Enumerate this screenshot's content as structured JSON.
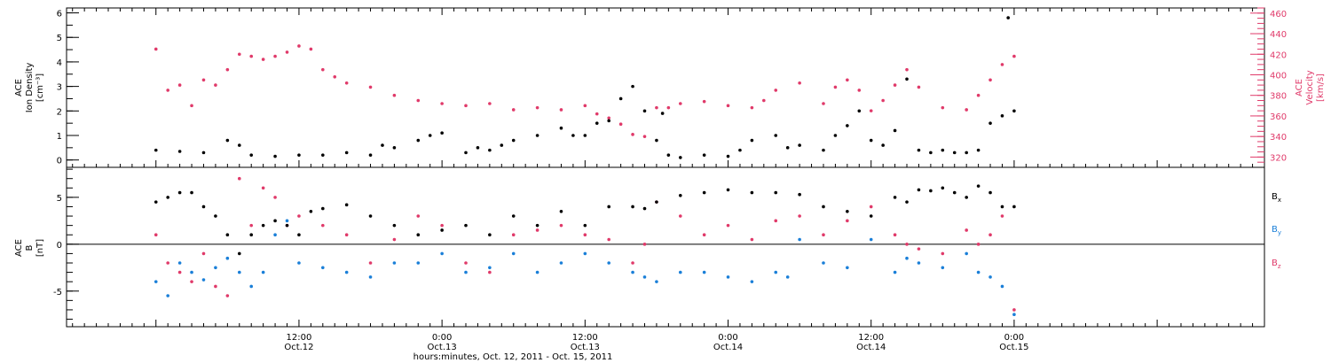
{
  "colors": {
    "black": "#000000",
    "pink": "#e03a6a",
    "blue": "#1a7fd8"
  },
  "xaxis": {
    "title": "hours:minutes, Oct. 12, 2011 - Oct. 15, 2011",
    "ticks": [
      {
        "hour": 12,
        "time": "12:00",
        "date": "Oct.12"
      },
      {
        "hour": 24,
        "time": "0:00",
        "date": "Oct.13"
      },
      {
        "hour": 36,
        "time": "12:00",
        "date": "Oct.13"
      },
      {
        "hour": 48,
        "time": "0:00",
        "date": "Oct.14"
      },
      {
        "hour": 60,
        "time": "12:00",
        "date": "Oct.14"
      },
      {
        "hour": 72,
        "time": "0:00",
        "date": "Oct.15"
      }
    ]
  },
  "chart_data": [
    {
      "type": "scatter",
      "panel": "top",
      "ylabel": [
        "ACE",
        "Ion Density",
        "[cm⁻³]"
      ],
      "ylim": [
        -0.3,
        6.2
      ],
      "yticks": [
        "0",
        "1",
        "2",
        "3",
        "4",
        "5",
        "6"
      ],
      "y2label": [
        "ACE",
        "Velocity",
        "[km/s]"
      ],
      "y2lim": [
        310,
        465
      ],
      "y2ticks": [
        "320",
        "340",
        "360",
        "380",
        "400",
        "420",
        "440",
        "460"
      ],
      "series": [
        {
          "key": "density",
          "color": "#000000",
          "axis": "left",
          "x": [
            0,
            2,
            4,
            6,
            7,
            8,
            10,
            12,
            14,
            16,
            18,
            19,
            20,
            22,
            23,
            24,
            26,
            27,
            28,
            29,
            30,
            32,
            34,
            35,
            36,
            37,
            38,
            39,
            40,
            41,
            42,
            42.5,
            43,
            44,
            46,
            48,
            49,
            50,
            52,
            53,
            54,
            56,
            57,
            58,
            59,
            60,
            61,
            62,
            63,
            64,
            65,
            66,
            67,
            68,
            69,
            70,
            71,
            71.5,
            72
          ],
          "y": [
            0.4,
            0.35,
            0.3,
            0.8,
            0.6,
            0.2,
            0.15,
            0.2,
            0.2,
            0.3,
            0.2,
            0.6,
            0.5,
            0.8,
            1.0,
            1.1,
            0.3,
            0.5,
            0.4,
            0.6,
            0.8,
            1.0,
            1.3,
            1.0,
            1.0,
            1.5,
            1.6,
            2.5,
            3.0,
            2.0,
            0.8,
            1.9,
            0.2,
            0.1,
            0.2,
            0.15,
            0.4,
            0.8,
            1.0,
            0.5,
            0.6,
            0.4,
            1.0,
            1.4,
            2.0,
            0.8,
            0.6,
            1.2,
            3.3,
            0.4,
            0.3,
            0.4,
            0.3,
            0.3,
            0.4,
            1.5,
            1.8,
            5.8,
            2.0
          ]
        },
        {
          "key": "velocity",
          "color": "#e03a6a",
          "axis": "right",
          "x": [
            0,
            1,
            2,
            3,
            4,
            5,
            6,
            7,
            8,
            9,
            10,
            11,
            12,
            13,
            14,
            15,
            16,
            18,
            20,
            22,
            24,
            26,
            28,
            30,
            32,
            34,
            36,
            37,
            38,
            39,
            40,
            41,
            42,
            43,
            44,
            46,
            48,
            50,
            51,
            52,
            54,
            56,
            57,
            58,
            59,
            60,
            61,
            62,
            63,
            64,
            66,
            68,
            69,
            70,
            71,
            72
          ],
          "y": [
            425,
            385,
            390,
            370,
            395,
            390,
            405,
            420,
            418,
            415,
            418,
            422,
            428,
            425,
            405,
            398,
            392,
            388,
            380,
            375,
            372,
            370,
            372,
            366,
            368,
            366,
            370,
            362,
            358,
            352,
            342,
            340,
            368,
            368,
            372,
            374,
            370,
            368,
            375,
            385,
            392,
            372,
            388,
            395,
            385,
            365,
            375,
            390,
            405,
            388,
            368,
            366,
            380,
            395,
            410,
            418
          ]
        }
      ]
    },
    {
      "type": "scatter",
      "panel": "bottom",
      "ylabel": [
        "ACE",
        "B",
        "[nT]"
      ],
      "ylim": [
        -8.8,
        8.2
      ],
      "yticks": [
        "-5",
        "0",
        "5"
      ],
      "zero_line": true,
      "series": [
        {
          "key": "bx",
          "name": "Bx",
          "color": "#000000",
          "x": [
            0,
            1,
            2,
            3,
            4,
            5,
            6,
            7,
            8,
            9,
            10,
            11,
            12,
            13,
            14,
            16,
            18,
            20,
            22,
            24,
            26,
            28,
            30,
            32,
            34,
            36,
            38,
            40,
            41,
            42,
            44,
            46,
            48,
            50,
            52,
            54,
            56,
            58,
            60,
            62,
            63,
            64,
            65,
            66,
            67,
            68,
            69,
            70,
            71,
            72
          ],
          "y": [
            4.5,
            5.0,
            5.5,
            5.5,
            4.0,
            3.0,
            1.0,
            -1.0,
            1.0,
            2.0,
            2.5,
            2.0,
            1.0,
            3.5,
            3.8,
            4.2,
            3.0,
            2.0,
            1.0,
            1.5,
            2.0,
            1.0,
            3.0,
            2.0,
            3.5,
            2.0,
            4.0,
            4.0,
            3.8,
            4.5,
            5.2,
            5.5,
            5.8,
            5.5,
            5.5,
            5.3,
            4.0,
            3.5,
            3.0,
            5.0,
            4.5,
            5.8,
            5.7,
            6.0,
            5.5,
            5.0,
            6.2,
            5.5,
            4.0,
            4.0
          ]
        },
        {
          "key": "by",
          "name": "By",
          "color": "#1a7fd8",
          "x": [
            0,
            1,
            2,
            3,
            4,
            5,
            6,
            7,
            8,
            9,
            10,
            11,
            12,
            14,
            16,
            18,
            20,
            22,
            24,
            26,
            28,
            30,
            32,
            34,
            36,
            38,
            40,
            41,
            42,
            44,
            46,
            48,
            50,
            52,
            53,
            54,
            56,
            58,
            60,
            62,
            63,
            64,
            66,
            68,
            69,
            70,
            71,
            72
          ],
          "y": [
            -4.0,
            -5.5,
            -2.0,
            -3.0,
            -3.8,
            -2.5,
            -1.5,
            -3.0,
            -4.5,
            -3.0,
            1.0,
            2.5,
            -2.0,
            -2.5,
            -3.0,
            -3.5,
            -2.0,
            -2.0,
            -1.0,
            -3.0,
            -2.5,
            -1.0,
            -3.0,
            -2.0,
            -1.0,
            -2.0,
            -3.0,
            -3.5,
            -4.0,
            -3.0,
            -3.0,
            -3.5,
            -4.0,
            -3.0,
            -3.5,
            0.5,
            -2.0,
            -2.5,
            0.5,
            -3.0,
            -1.5,
            -2.0,
            -2.5,
            -1.0,
            -3.0,
            -3.5,
            -4.5,
            -7.5
          ]
        },
        {
          "key": "bz",
          "name": "Bz",
          "color": "#e03a6a",
          "x": [
            0,
            1,
            2,
            3,
            4,
            5,
            6,
            7,
            8,
            9,
            10,
            11,
            12,
            14,
            16,
            18,
            20,
            22,
            24,
            26,
            28,
            30,
            32,
            34,
            36,
            38,
            40,
            41,
            42,
            44,
            46,
            48,
            50,
            52,
            54,
            56,
            58,
            60,
            62,
            63,
            64,
            66,
            68,
            69,
            70,
            71,
            72
          ],
          "y": [
            1.0,
            -2.0,
            -3.0,
            -4.0,
            -1.0,
            -4.5,
            -5.5,
            7.0,
            2.0,
            6.0,
            5.0,
            2.0,
            3.0,
            2.0,
            1.0,
            -2.0,
            0.5,
            3.0,
            2.0,
            -2.0,
            -3.0,
            1.0,
            1.5,
            2.0,
            1.0,
            0.5,
            -2.0,
            0.0,
            4.5,
            3.0,
            1.0,
            2.0,
            0.5,
            2.5,
            3.0,
            1.0,
            2.5,
            4.0,
            1.0,
            0.0,
            -0.5,
            -1.0,
            1.5,
            0.0,
            1.0,
            3.0,
            -7.0
          ]
        }
      ],
      "legend": {
        "placement": "right",
        "entries": [
          "B",
          "B",
          "B"
        ],
        "subscripts": [
          "x",
          "y",
          "z"
        ]
      }
    }
  ]
}
